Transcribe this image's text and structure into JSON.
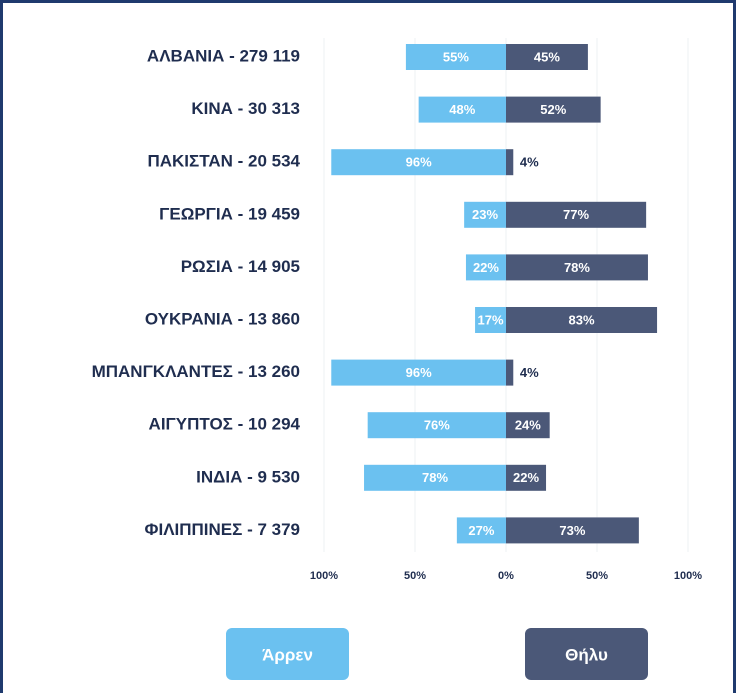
{
  "chart_data": {
    "type": "diverging_bar",
    "categories": [
      "ΑΛΒΑΝΙΑ - 279 119",
      "ΚΙΝΑ - 30 313",
      "ΠΑΚΙΣΤΑΝ - 20 534",
      "ΓΕΩΡΓΙΑ - 19 459",
      "ΡΩΣΙΑ - 14 905",
      "ΟΥΚΡΑΝΙΑ - 13 860",
      "ΜΠΑΝΓΚΛΑΝΤΕΣ - 13 260",
      "ΑΙΓΥΠΤΟΣ - 10 294",
      "ΙΝΔΙΑ - 9 530",
      "ΦΙΛΙΠΠΙΝΕΣ - 7 379"
    ],
    "series": [
      {
        "name": "Άρρεν",
        "color": "#6bc1f0",
        "side": "left",
        "values": [
          55,
          48,
          96,
          23,
          22,
          17,
          96,
          76,
          78,
          27
        ],
        "value_labels": [
          "55%",
          "48%",
          "96%",
          "23%",
          "22%",
          "17%",
          "96%",
          "76%",
          "78%",
          "27%"
        ]
      },
      {
        "name": "Θήλυ",
        "color": "#4b5878",
        "side": "right",
        "values": [
          45,
          52,
          4,
          77,
          78,
          83,
          4,
          24,
          22,
          73
        ],
        "value_labels": [
          "45%",
          "52%",
          "4%",
          "77%",
          "78%",
          "83%",
          "4%",
          "24%",
          "22%",
          "73%"
        ]
      }
    ],
    "xlim": [
      -100,
      100
    ],
    "xticks": [
      {
        "value": -100,
        "label": "100%"
      },
      {
        "value": -50,
        "label": "50%"
      },
      {
        "value": 0,
        "label": "0%"
      },
      {
        "value": 50,
        "label": "50%"
      },
      {
        "value": 100,
        "label": "100%"
      }
    ],
    "grid": true
  }
}
